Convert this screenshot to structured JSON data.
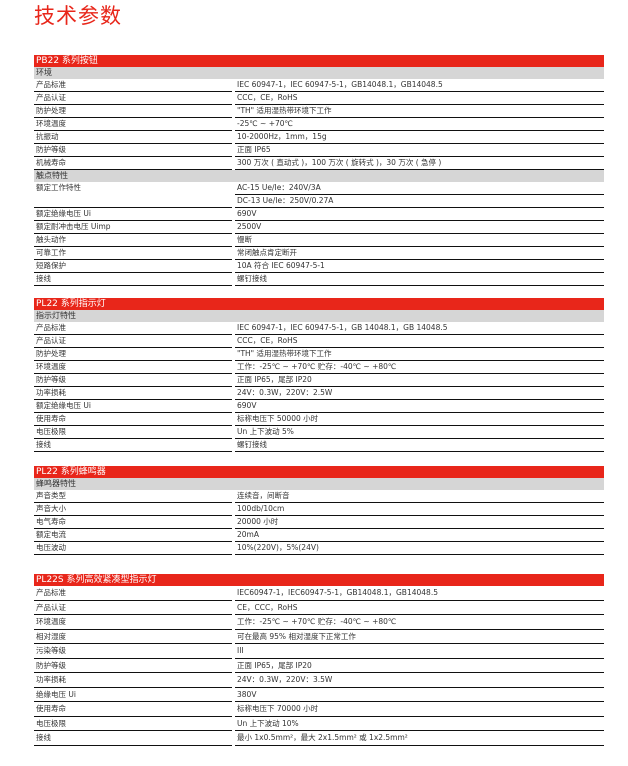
{
  "page_title": "技术参数",
  "sections": [
    {
      "header": "PB22 系列按钮",
      "groups": [
        {
          "subheader": "环境",
          "rows": [
            {
              "k": "产品标准",
              "v": "IEC 60947-1，IEC 60947-5-1，GB14048.1，GB14048.5"
            },
            {
              "k": "产品认证",
              "v": "CCC，CE，RoHS"
            },
            {
              "k": "防护处理",
              "v": "\"TH\" 适用湿热带环境下工作"
            },
            {
              "k": "环境温度",
              "v": "-25℃ ~ +70℃"
            },
            {
              "k": "抗振动",
              "v": "10-2000Hz，1mm，15g"
            },
            {
              "k": "防护等级",
              "v": "正面 IP65"
            },
            {
              "k": "机械寿命",
              "v": "300 万次 ( 直动式 )，100 万次 ( 旋转式 )，30 万次 ( 急停 )"
            }
          ]
        },
        {
          "subheader": "触点特性",
          "rows": [
            {
              "k": "额定工作特性",
              "v": "AC-15 Ue/Ie：240V/3A",
              "v2": "DC-13 Ue/Ie：250V/0.27A"
            },
            {
              "k": "额定绝缘电压 Ui",
              "v": "690V"
            },
            {
              "k": "额定耐冲击电压 Uimp",
              "v": "2500V"
            },
            {
              "k": "触头动作",
              "v": "慢断"
            },
            {
              "k": "可靠工作",
              "v": "常闭触点肯定断开"
            },
            {
              "k": "短路保护",
              "v": "10A 符合 IEC 60947-5-1"
            },
            {
              "k": "接线",
              "v": "螺钉接线"
            }
          ]
        }
      ]
    },
    {
      "header": "PL22 系列指示灯",
      "groups": [
        {
          "subheader": "指示灯特性",
          "rows": [
            {
              "k": "产品标准",
              "v": "IEC 60947-1，IEC 60947-5-1，GB 14048.1，GB 14048.5"
            },
            {
              "k": "产品认证",
              "v": "CCC，CE，RoHS"
            },
            {
              "k": "防护处理",
              "v": "\"TH\" 适用湿热带环境下工作"
            },
            {
              "k": "环境温度",
              "v": "工作：-25℃ ~ +70℃  贮存：-40℃ ~ +80℃"
            },
            {
              "k": "防护等级",
              "v": "正面 IP65，尾部 IP20"
            },
            {
              "k": "功率损耗",
              "v": "24V：0.3W，220V：2.5W"
            },
            {
              "k": "额定绝缘电压 Ui",
              "v": "690V"
            },
            {
              "k": "使用寿命",
              "v": "标称电压下 50000 小时"
            },
            {
              "k": "电压极限",
              "v": "Un 上下波动 5%"
            },
            {
              "k": "接线",
              "v": "螺钉接线"
            }
          ]
        }
      ]
    },
    {
      "header": "PL22 系列蜂鸣器",
      "groups": [
        {
          "subheader": "蜂鸣器特性",
          "rows": [
            {
              "k": "声音类型",
              "v": "连续音，间断音"
            },
            {
              "k": "声音大小",
              "v": "100db/10cm"
            },
            {
              "k": "电气寿命",
              "v": "20000 小时"
            },
            {
              "k": "额定电流",
              "v": "20mA"
            },
            {
              "k": "电压波动",
              "v": "10%(220V)，5%(24V)"
            }
          ]
        }
      ]
    },
    {
      "header": "PL22S 系列高效紧凑型指示灯",
      "groups": [
        {
          "subheader": "",
          "rows": [
            {
              "k": "产品标准",
              "v": "IEC60947-1，IEC60947-5-1，GB14048.1，GB14048.5"
            },
            {
              "k": "产品认证",
              "v": "CE，CCC，RoHS"
            },
            {
              "k": "环境温度",
              "v": "工作：-25℃ ~ +70℃  贮存：-40℃ ~ +80℃"
            },
            {
              "k": "相对湿度",
              "v": "可在最高 95% 相对湿度下正常工作"
            },
            {
              "k": "污染等级",
              "v": "III"
            },
            {
              "k": "防护等级",
              "v": "正面 IP65，尾部 IP20"
            },
            {
              "k": "功率损耗",
              "v": "24V：0.3W，220V：3.5W"
            },
            {
              "k": "绝缘电压 Ui",
              "v": "380V"
            },
            {
              "k": "使用寿命",
              "v": "标称电压下 70000 小时"
            },
            {
              "k": "电压极限",
              "v": "Un 上下波动 10%"
            },
            {
              "k": "接线",
              "v": "最小 1x0.5mm²，最大 2x1.5mm² 或 1x2.5mm²"
            }
          ]
        }
      ]
    }
  ]
}
